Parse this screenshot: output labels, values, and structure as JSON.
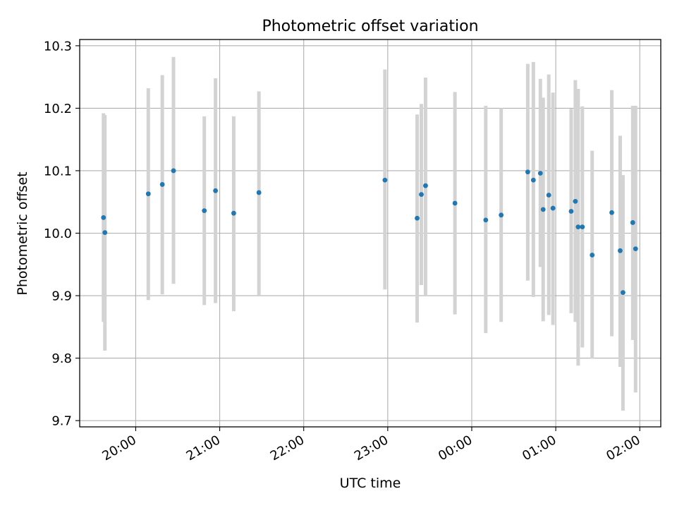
{
  "chart_data": {
    "type": "scatter",
    "title": "Photometric offset variation",
    "xlabel": "UTC time",
    "ylabel": "Photometric offset",
    "grid": true,
    "colors": {
      "points": "#1f77b4",
      "errorbars": "#d3d3d3",
      "grid": "#b0b0b0",
      "axes": "#000000"
    },
    "xlim": [
      "19:20",
      "02:15"
    ],
    "ylim": [
      9.69,
      10.31
    ],
    "xticks": [
      "20:00",
      "21:00",
      "22:00",
      "23:00",
      "00:00",
      "01:00",
      "02:00"
    ],
    "yticks": [
      "9.7",
      "9.8",
      "9.9",
      "10.0",
      "10.1",
      "10.2",
      "10.3"
    ],
    "series": [
      {
        "points": [
          {
            "x": "19:37",
            "y": 10.025,
            "ylow": 9.858,
            "yhigh": 10.192
          },
          {
            "x": "19:38",
            "y": 10.001,
            "ylow": 9.812,
            "yhigh": 10.189
          },
          {
            "x": "20:09",
            "y": 10.063,
            "ylow": 9.893,
            "yhigh": 10.232
          },
          {
            "x": "20:19",
            "y": 10.078,
            "ylow": 9.902,
            "yhigh": 10.253
          },
          {
            "x": "20:27",
            "y": 10.1,
            "ylow": 9.919,
            "yhigh": 10.282
          },
          {
            "x": "20:49",
            "y": 10.036,
            "ylow": 9.885,
            "yhigh": 10.187
          },
          {
            "x": "20:57",
            "y": 10.068,
            "ylow": 9.888,
            "yhigh": 10.248
          },
          {
            "x": "21:10",
            "y": 10.032,
            "ylow": 9.875,
            "yhigh": 10.187
          },
          {
            "x": "21:28",
            "y": 10.065,
            "ylow": 9.9,
            "yhigh": 10.227
          },
          {
            "x": "22:58",
            "y": 10.085,
            "ylow": 9.91,
            "yhigh": 10.262
          },
          {
            "x": "23:21",
            "y": 10.024,
            "ylow": 9.857,
            "yhigh": 10.19
          },
          {
            "x": "23:24",
            "y": 10.062,
            "ylow": 9.917,
            "yhigh": 10.207
          },
          {
            "x": "23:27",
            "y": 10.076,
            "ylow": 9.9,
            "yhigh": 10.249
          },
          {
            "x": "23:48",
            "y": 10.048,
            "ylow": 9.87,
            "yhigh": 10.226
          },
          {
            "x": "00:10",
            "y": 10.021,
            "ylow": 9.84,
            "yhigh": 10.204
          },
          {
            "x": "00:21",
            "y": 10.029,
            "ylow": 9.858,
            "yhigh": 10.2
          },
          {
            "x": "00:40",
            "y": 10.098,
            "ylow": 9.924,
            "yhigh": 10.271
          },
          {
            "x": "00:44",
            "y": 10.085,
            "ylow": 9.898,
            "yhigh": 10.274
          },
          {
            "x": "00:49",
            "y": 10.096,
            "ylow": 9.946,
            "yhigh": 10.247
          },
          {
            "x": "00:51",
            "y": 10.038,
            "ylow": 9.859,
            "yhigh": 10.217
          },
          {
            "x": "00:55",
            "y": 10.061,
            "ylow": 9.869,
            "yhigh": 10.254
          },
          {
            "x": "00:58",
            "y": 10.04,
            "ylow": 9.853,
            "yhigh": 10.225
          },
          {
            "x": "01:11",
            "y": 10.035,
            "ylow": 9.872,
            "yhigh": 10.199
          },
          {
            "x": "01:14",
            "y": 10.051,
            "ylow": 9.858,
            "yhigh": 10.245
          },
          {
            "x": "01:16",
            "y": 10.01,
            "ylow": 9.788,
            "yhigh": 10.231
          },
          {
            "x": "01:19",
            "y": 10.01,
            "ylow": 9.817,
            "yhigh": 10.203
          },
          {
            "x": "01:26",
            "y": 9.965,
            "ylow": 9.799,
            "yhigh": 10.132
          },
          {
            "x": "01:40",
            "y": 10.033,
            "ylow": 9.835,
            "yhigh": 10.229
          },
          {
            "x": "01:46",
            "y": 9.972,
            "ylow": 9.786,
            "yhigh": 10.156
          },
          {
            "x": "01:48",
            "y": 9.905,
            "ylow": 9.716,
            "yhigh": 10.093
          },
          {
            "x": "01:55",
            "y": 10.017,
            "ylow": 9.829,
            "yhigh": 10.204
          },
          {
            "x": "01:57",
            "y": 9.975,
            "ylow": 9.745,
            "yhigh": 10.204
          }
        ]
      }
    ]
  }
}
